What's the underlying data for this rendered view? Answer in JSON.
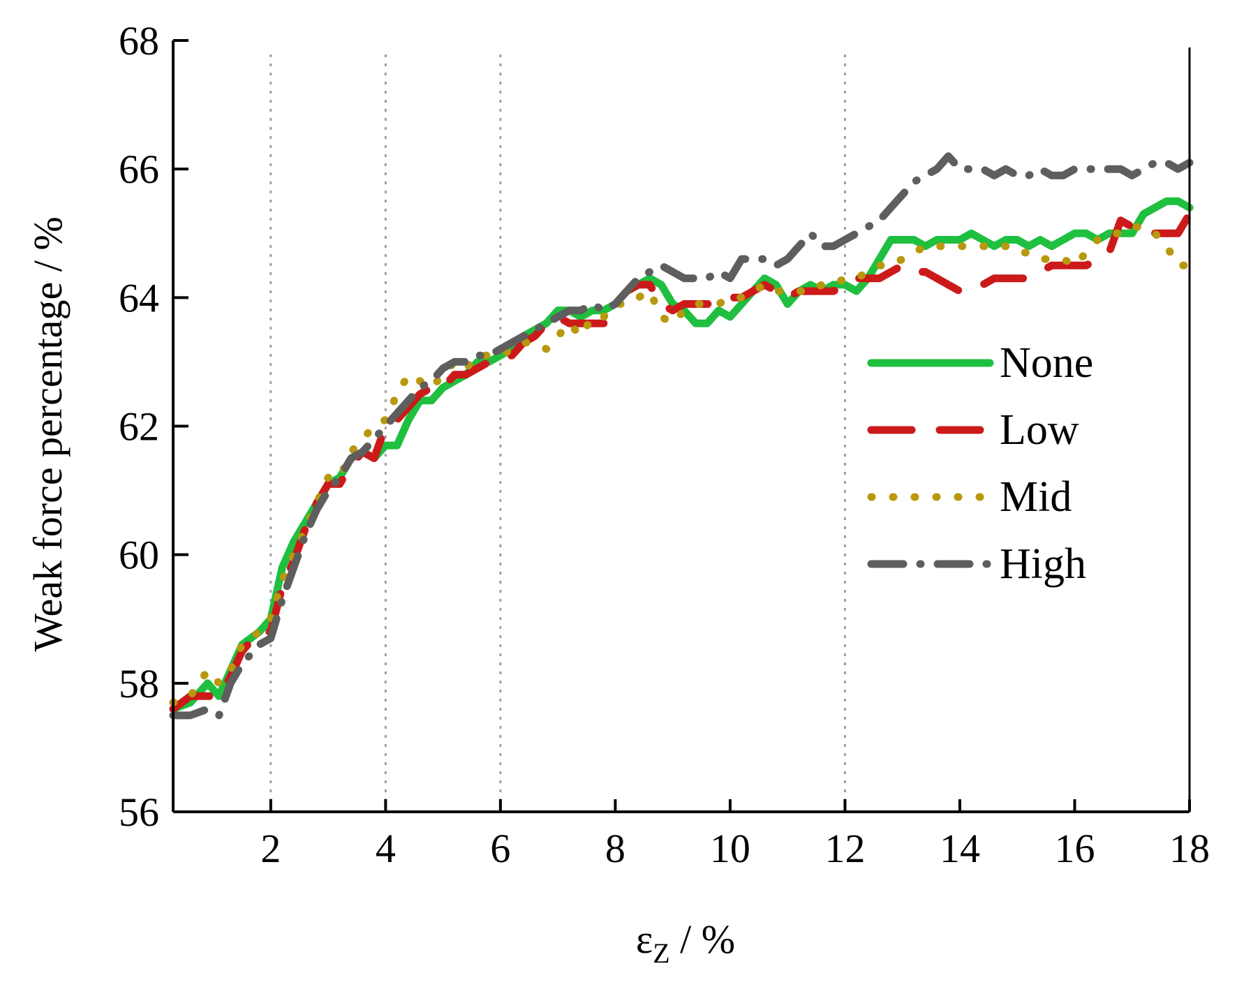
{
  "chart_data": {
    "type": "line",
    "title": "",
    "xlabel": {
      "main": "ε",
      "sub": "Z",
      "rest": " / %"
    },
    "ylabel": "Weak force percentage / %",
    "xlim": [
      0.3,
      18
    ],
    "ylim": [
      56,
      68
    ],
    "xticks": [
      2,
      4,
      6,
      8,
      10,
      12,
      14,
      16,
      18
    ],
    "yticks": [
      56,
      58,
      60,
      62,
      64,
      66,
      68
    ],
    "vgrid": [
      2,
      4,
      6,
      12
    ],
    "legend_position": "right",
    "series": [
      {
        "name": "None",
        "color": "#1fbf3f",
        "style": "solid",
        "x": [
          0.3,
          0.6,
          0.9,
          1.1,
          1.3,
          1.5,
          1.8,
          2.0,
          2.2,
          2.4,
          2.6,
          2.8,
          3.0,
          3.2,
          3.4,
          3.6,
          3.8,
          4.0,
          4.2,
          4.4,
          4.6,
          4.8,
          5.0,
          5.2,
          5.4,
          5.6,
          5.8,
          6.0,
          6.2,
          6.4,
          6.6,
          6.8,
          7.0,
          7.2,
          7.4,
          7.6,
          7.8,
          8.0,
          8.2,
          8.4,
          8.6,
          8.8,
          9.0,
          9.2,
          9.4,
          9.6,
          9.8,
          10.0,
          10.2,
          10.4,
          10.6,
          10.8,
          11.0,
          11.2,
          11.4,
          11.6,
          11.8,
          12.0,
          12.2,
          12.4,
          12.6,
          12.8,
          13.0,
          13.2,
          13.4,
          13.6,
          13.8,
          14.0,
          14.2,
          14.4,
          14.6,
          14.8,
          15.0,
          15.2,
          15.4,
          15.6,
          15.8,
          16.0,
          16.2,
          16.4,
          16.6,
          16.8,
          17.0,
          17.2,
          17.4,
          17.6,
          17.8,
          18.0
        ],
        "values": [
          57.6,
          57.7,
          58.0,
          57.8,
          58.2,
          58.6,
          58.8,
          59.0,
          59.8,
          60.2,
          60.5,
          60.8,
          61.1,
          61.2,
          61.5,
          61.6,
          61.5,
          61.7,
          61.7,
          62.1,
          62.4,
          62.4,
          62.6,
          62.7,
          62.8,
          63.0,
          63.0,
          63.1,
          63.2,
          63.4,
          63.5,
          63.6,
          63.8,
          63.8,
          63.7,
          63.8,
          63.8,
          63.9,
          64.1,
          64.2,
          64.3,
          64.2,
          63.9,
          63.8,
          63.6,
          63.6,
          63.8,
          63.7,
          63.9,
          64.1,
          64.3,
          64.2,
          63.9,
          64.1,
          64.2,
          64.1,
          64.2,
          64.2,
          64.1,
          64.3,
          64.6,
          64.9,
          64.9,
          64.9,
          64.8,
          64.9,
          64.9,
          64.9,
          65.0,
          64.9,
          64.8,
          64.9,
          64.9,
          64.8,
          64.9,
          64.8,
          64.9,
          65.0,
          65.0,
          64.9,
          65.0,
          65.0,
          65.0,
          65.3,
          65.4,
          65.5,
          65.5,
          65.4
        ]
      },
      {
        "name": "Low",
        "color": "#cc1a1a",
        "style": "dash",
        "x": [
          0.3,
          0.6,
          0.9,
          1.1,
          1.3,
          1.5,
          1.8,
          2.0,
          2.2,
          2.4,
          2.6,
          2.8,
          3.0,
          3.2,
          3.4,
          3.6,
          3.8,
          4.0,
          4.2,
          4.4,
          4.6,
          4.8,
          5.0,
          5.2,
          5.4,
          5.6,
          5.8,
          6.0,
          6.2,
          6.4,
          6.6,
          6.8,
          7.0,
          7.2,
          7.4,
          7.6,
          7.8,
          8.0,
          8.2,
          8.4,
          8.6,
          8.8,
          9.0,
          9.2,
          9.4,
          9.6,
          9.8,
          10.0,
          10.2,
          10.4,
          10.6,
          10.8,
          11.0,
          11.2,
          11.4,
          11.6,
          11.8,
          12.0,
          12.2,
          12.4,
          12.6,
          12.8,
          13.0,
          13.2,
          13.4,
          13.6,
          13.8,
          14.0,
          14.2,
          14.4,
          14.6,
          14.8,
          15.0,
          15.2,
          15.4,
          15.6,
          15.8,
          16.0,
          16.2,
          16.4,
          16.6,
          16.8,
          17.0,
          17.2,
          17.4,
          17.6,
          17.8,
          18.0
        ],
        "values": [
          57.6,
          57.8,
          57.8,
          57.8,
          58.1,
          58.5,
          58.8,
          58.8,
          59.5,
          59.9,
          60.4,
          60.8,
          61.1,
          61.1,
          61.4,
          61.6,
          61.5,
          62.0,
          62.1,
          62.3,
          62.5,
          62.6,
          62.6,
          62.8,
          62.8,
          62.9,
          63.0,
          63.1,
          63.1,
          63.3,
          63.4,
          63.6,
          63.7,
          63.6,
          63.6,
          63.6,
          63.6,
          63.9,
          64.1,
          64.2,
          64.2,
          63.9,
          63.8,
          63.9,
          63.9,
          63.9,
          63.9,
          64.0,
          64.0,
          64.1,
          64.2,
          64.1,
          64.0,
          64.1,
          64.1,
          64.1,
          64.1,
          64.2,
          64.3,
          64.3,
          64.3,
          64.4,
          64.5,
          64.4,
          64.4,
          64.3,
          64.2,
          64.1,
          64.1,
          64.2,
          64.3,
          64.3,
          64.3,
          64.3,
          64.4,
          64.5,
          64.5,
          64.5,
          64.5,
          64.6,
          64.7,
          65.2,
          65.1,
          65.1,
          65.0,
          65.0,
          65.0,
          65.3
        ]
      },
      {
        "name": "Mid",
        "color": "#b8980e",
        "style": "dot",
        "x": [
          0.3,
          0.6,
          0.9,
          1.1,
          1.3,
          1.5,
          1.8,
          2.0,
          2.2,
          2.4,
          2.6,
          2.8,
          3.0,
          3.2,
          3.4,
          3.6,
          3.8,
          4.0,
          4.2,
          4.4,
          4.6,
          4.8,
          5.0,
          5.2,
          5.4,
          5.6,
          5.8,
          6.0,
          6.2,
          6.4,
          6.6,
          6.8,
          7.0,
          7.2,
          7.4,
          7.6,
          7.8,
          8.0,
          8.2,
          8.4,
          8.6,
          8.8,
          9.0,
          9.2,
          9.4,
          9.6,
          9.8,
          10.0,
          10.2,
          10.4,
          10.6,
          10.8,
          11.0,
          11.2,
          11.4,
          11.6,
          11.8,
          12.0,
          12.2,
          12.4,
          12.6,
          12.8,
          13.0,
          13.2,
          13.4,
          13.6,
          13.8,
          14.0,
          14.2,
          14.4,
          14.6,
          14.8,
          15.0,
          15.2,
          15.4,
          15.6,
          15.8,
          16.0,
          16.2,
          16.4,
          16.6,
          16.8,
          17.0,
          17.2,
          17.4,
          17.6,
          17.8,
          18.0
        ],
        "values": [
          57.7,
          57.8,
          58.2,
          58.0,
          58.2,
          58.6,
          58.8,
          59.0,
          59.6,
          60.0,
          60.4,
          60.8,
          61.2,
          61.2,
          61.6,
          61.8,
          62.0,
          62.1,
          62.5,
          62.8,
          62.7,
          62.6,
          62.8,
          63.0,
          62.9,
          63.1,
          63.1,
          63.1,
          63.2,
          63.3,
          63.3,
          63.2,
          63.4,
          63.6,
          63.4,
          63.7,
          63.7,
          63.9,
          63.9,
          64.0,
          64.1,
          63.7,
          63.6,
          63.8,
          63.9,
          63.9,
          63.9,
          64.0,
          64.0,
          64.1,
          64.2,
          64.1,
          64.1,
          64.1,
          64.1,
          64.2,
          64.2,
          64.3,
          64.3,
          64.4,
          64.5,
          64.5,
          64.6,
          64.7,
          64.8,
          64.8,
          64.8,
          64.8,
          64.8,
          64.8,
          64.8,
          64.8,
          64.7,
          64.7,
          64.6,
          64.6,
          64.6,
          64.5,
          64.7,
          64.9,
          65.0,
          65.0,
          65.1,
          65.1,
          65.0,
          64.8,
          64.5,
          64.5
        ]
      },
      {
        "name": "High",
        "color": "#5e5e5e",
        "style": "dashdot",
        "x": [
          0.3,
          0.6,
          0.9,
          1.1,
          1.3,
          1.5,
          1.8,
          2.0,
          2.2,
          2.4,
          2.6,
          2.8,
          3.0,
          3.2,
          3.4,
          3.6,
          3.8,
          4.0,
          4.2,
          4.4,
          4.6,
          4.8,
          5.0,
          5.2,
          5.4,
          5.6,
          5.8,
          6.0,
          6.2,
          6.4,
          6.6,
          6.8,
          7.0,
          7.2,
          7.4,
          7.6,
          7.8,
          8.0,
          8.2,
          8.4,
          8.6,
          8.8,
          9.0,
          9.2,
          9.4,
          9.6,
          9.8,
          10.0,
          10.2,
          10.4,
          10.6,
          10.8,
          11.0,
          11.2,
          11.4,
          11.6,
          11.8,
          12.0,
          12.2,
          12.4,
          12.6,
          12.8,
          13.0,
          13.2,
          13.4,
          13.6,
          13.8,
          14.0,
          14.2,
          14.4,
          14.6,
          14.8,
          15.0,
          15.2,
          15.4,
          15.6,
          15.8,
          16.0,
          16.2,
          16.4,
          16.6,
          16.8,
          17.0,
          17.2,
          17.4,
          17.6,
          17.8,
          18.0
        ],
        "values": [
          57.5,
          57.5,
          57.6,
          57.5,
          58.0,
          58.3,
          58.6,
          58.7,
          59.3,
          59.8,
          60.3,
          60.7,
          61.0,
          61.2,
          61.5,
          61.6,
          61.8,
          62.0,
          62.2,
          62.4,
          62.6,
          62.7,
          62.9,
          63.0,
          63.0,
          63.1,
          63.1,
          63.2,
          63.3,
          63.4,
          63.5,
          63.6,
          63.7,
          63.8,
          63.8,
          63.9,
          63.8,
          63.9,
          64.1,
          64.3,
          64.4,
          64.5,
          64.4,
          64.3,
          64.3,
          64.3,
          64.4,
          64.3,
          64.6,
          64.6,
          64.6,
          64.5,
          64.6,
          64.8,
          65.0,
          64.8,
          64.8,
          64.9,
          65.0,
          65.1,
          65.2,
          65.4,
          65.6,
          65.8,
          65.9,
          66.0,
          66.2,
          66.0,
          66.0,
          66.0,
          65.9,
          66.0,
          65.9,
          65.9,
          66.0,
          65.9,
          65.9,
          66.0,
          66.0,
          66.0,
          66.0,
          66.0,
          65.9,
          66.0,
          66.1,
          66.1,
          66.0,
          66.1
        ]
      }
    ]
  }
}
